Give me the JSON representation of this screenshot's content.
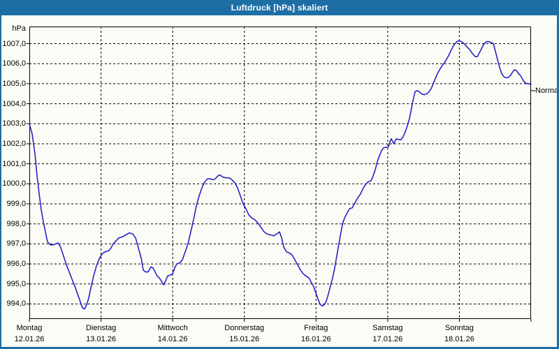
{
  "window": {
    "title": "Luftdruck [hPa] skaliert",
    "title_bar_color": "#1c6ea4",
    "background_color": "#fcfcf6"
  },
  "chart_data": {
    "type": "line",
    "title": "Luftdruck [hPa] skaliert",
    "ylabel": "hPa",
    "line_color": "#2424c8",
    "grid": "dashed",
    "legend_position": "none",
    "ylim": [
      993.25,
      1007.854
    ],
    "xlim": [
      0,
      7
    ],
    "y_ticks": [
      {
        "value": 1007,
        "label": "1007,0"
      },
      {
        "value": 1006,
        "label": "1006,0"
      },
      {
        "value": 1005,
        "label": "1005,0"
      },
      {
        "value": 1004,
        "label": "1004,0"
      },
      {
        "value": 1003,
        "label": "1003,0"
      },
      {
        "value": 1002,
        "label": "1002,0"
      },
      {
        "value": 1001,
        "label": "1001,0"
      },
      {
        "value": 1000,
        "label": "1000,0"
      },
      {
        "value": 999,
        "label": "999,0"
      },
      {
        "value": 998,
        "label": "998,0"
      },
      {
        "value": 997,
        "label": "997,0"
      },
      {
        "value": 996,
        "label": "996,0"
      },
      {
        "value": 995,
        "label": "995,0"
      },
      {
        "value": 994,
        "label": "994,0"
      }
    ],
    "x_ticks": [
      {
        "pos": 0,
        "day": "Montag",
        "date": "12.01.26"
      },
      {
        "pos": 1,
        "day": "Dienstag",
        "date": "13.01.26"
      },
      {
        "pos": 2,
        "day": "Mittwoch",
        "date": "14.01.26"
      },
      {
        "pos": 3,
        "day": "Donnerstag",
        "date": "15.01.26"
      },
      {
        "pos": 4,
        "day": "Freitag",
        "date": "16.01.26"
      },
      {
        "pos": 5,
        "day": "Samstag",
        "date": "17.01.26"
      },
      {
        "pos": 6,
        "day": "Sonntag",
        "date": "18.01.26"
      }
    ],
    "annotation": {
      "label": "Normal",
      "value": 1004.65
    },
    "series": [
      {
        "name": "Luftdruck",
        "points": [
          [
            0,
            1003.0
          ],
          [
            0.039,
            1002.5
          ],
          [
            0.078,
            1001.5
          ],
          [
            0.107,
            1000.4
          ],
          [
            0.137,
            999.5
          ],
          [
            0.166,
            998.7
          ],
          [
            0.195,
            998.1
          ],
          [
            0.224,
            997.6
          ],
          [
            0.253,
            997.1
          ],
          [
            0.293,
            996.95
          ],
          [
            0.331,
            996.95
          ],
          [
            0.37,
            997.0
          ],
          [
            0.4,
            997.05
          ],
          [
            0.429,
            996.9
          ],
          [
            0.468,
            996.5
          ],
          [
            0.517,
            995.95
          ],
          [
            0.566,
            995.5
          ],
          [
            0.604,
            995.15
          ],
          [
            0.634,
            994.9
          ],
          [
            0.663,
            994.6
          ],
          [
            0.702,
            994.2
          ],
          [
            0.741,
            993.8
          ],
          [
            0.77,
            993.75
          ],
          [
            0.799,
            993.95
          ],
          [
            0.829,
            994.3
          ],
          [
            0.858,
            994.8
          ],
          [
            0.897,
            995.4
          ],
          [
            0.936,
            995.9
          ],
          [
            0.975,
            996.25
          ],
          [
            1.014,
            996.5
          ],
          [
            1.053,
            996.6
          ],
          [
            1.102,
            996.65
          ],
          [
            1.131,
            996.75
          ],
          [
            1.17,
            997.0
          ],
          [
            1.209,
            997.15
          ],
          [
            1.248,
            997.3
          ],
          [
            1.297,
            997.35
          ],
          [
            1.345,
            997.45
          ],
          [
            1.394,
            997.55
          ],
          [
            1.443,
            997.5
          ],
          [
            1.482,
            997.3
          ],
          [
            1.521,
            996.8
          ],
          [
            1.56,
            996.3
          ],
          [
            1.589,
            995.7
          ],
          [
            1.618,
            995.6
          ],
          [
            1.657,
            995.6
          ],
          [
            1.696,
            995.85
          ],
          [
            1.726,
            995.8
          ],
          [
            1.755,
            995.6
          ],
          [
            1.784,
            995.4
          ],
          [
            1.813,
            995.3
          ],
          [
            1.843,
            995.15
          ],
          [
            1.872,
            994.95
          ],
          [
            1.901,
            995.15
          ],
          [
            1.93,
            995.4
          ],
          [
            1.969,
            995.45
          ],
          [
            1.999,
            995.5
          ],
          [
            2.028,
            995.8
          ],
          [
            2.057,
            996.0
          ],
          [
            2.096,
            996.05
          ],
          [
            2.135,
            996.2
          ],
          [
            2.174,
            996.6
          ],
          [
            2.213,
            997.0
          ],
          [
            2.252,
            997.6
          ],
          [
            2.291,
            998.2
          ],
          [
            2.33,
            998.9
          ],
          [
            2.369,
            999.4
          ],
          [
            2.408,
            999.8
          ],
          [
            2.447,
            1000.1
          ],
          [
            2.486,
            1000.25
          ],
          [
            2.525,
            1000.25
          ],
          [
            2.564,
            1000.2
          ],
          [
            2.593,
            1000.25
          ],
          [
            2.632,
            1000.4
          ],
          [
            2.662,
            1000.45
          ],
          [
            2.691,
            1000.35
          ],
          [
            2.74,
            1000.3
          ],
          [
            2.788,
            1000.3
          ],
          [
            2.827,
            1000.2
          ],
          [
            2.866,
            1000.05
          ],
          [
            2.905,
            999.8
          ],
          [
            2.944,
            999.4
          ],
          [
            2.983,
            999.0
          ],
          [
            3.022,
            998.75
          ],
          [
            3.061,
            998.45
          ],
          [
            3.1,
            998.3
          ],
          [
            3.149,
            998.2
          ],
          [
            3.198,
            998.0
          ],
          [
            3.237,
            997.8
          ],
          [
            3.276,
            997.6
          ],
          [
            3.315,
            997.5
          ],
          [
            3.364,
            997.45
          ],
          [
            3.412,
            997.4
          ],
          [
            3.451,
            997.5
          ],
          [
            3.49,
            997.6
          ],
          [
            3.52,
            997.3
          ],
          [
            3.549,
            996.85
          ],
          [
            3.588,
            996.6
          ],
          [
            3.627,
            996.55
          ],
          [
            3.666,
            996.45
          ],
          [
            3.705,
            996.2
          ],
          [
            3.744,
            995.95
          ],
          [
            3.783,
            995.7
          ],
          [
            3.822,
            995.5
          ],
          [
            3.861,
            995.4
          ],
          [
            3.9,
            995.3
          ],
          [
            3.939,
            995.05
          ],
          [
            3.968,
            994.85
          ],
          [
            3.997,
            994.55
          ],
          [
            4.027,
            994.25
          ],
          [
            4.056,
            994.0
          ],
          [
            4.085,
            993.9
          ],
          [
            4.114,
            993.95
          ],
          [
            4.143,
            994.15
          ],
          [
            4.173,
            994.5
          ],
          [
            4.202,
            994.9
          ],
          [
            4.231,
            995.3
          ],
          [
            4.26,
            995.8
          ],
          [
            4.29,
            996.4
          ],
          [
            4.319,
            997.0
          ],
          [
            4.348,
            997.6
          ],
          [
            4.377,
            998.1
          ],
          [
            4.406,
            998.35
          ],
          [
            4.436,
            998.55
          ],
          [
            4.465,
            998.75
          ],
          [
            4.504,
            998.8
          ],
          [
            4.543,
            999.05
          ],
          [
            4.582,
            999.3
          ],
          [
            4.621,
            999.5
          ],
          [
            4.66,
            999.8
          ],
          [
            4.699,
            1000.0
          ],
          [
            4.728,
            1000.1
          ],
          [
            4.767,
            1000.15
          ],
          [
            4.797,
            1000.4
          ],
          [
            4.826,
            1000.7
          ],
          [
            4.855,
            1001.1
          ],
          [
            4.884,
            1001.4
          ],
          [
            4.913,
            1001.65
          ],
          [
            4.943,
            1001.8
          ],
          [
            4.982,
            1001.82
          ],
          [
            5.011,
            1001.85
          ],
          [
            5.031,
            1002.1
          ],
          [
            5.05,
            1002.25
          ],
          [
            5.07,
            1002.1
          ],
          [
            5.089,
            1002.0
          ],
          [
            5.109,
            1002.2
          ],
          [
            5.128,
            1002.25
          ],
          [
            5.157,
            1002.2
          ],
          [
            5.187,
            1002.2
          ],
          [
            5.216,
            1002.35
          ],
          [
            5.245,
            1002.6
          ],
          [
            5.274,
            1002.9
          ],
          [
            5.304,
            1003.25
          ],
          [
            5.333,
            1003.8
          ],
          [
            5.362,
            1004.3
          ],
          [
            5.382,
            1004.6
          ],
          [
            5.411,
            1004.65
          ],
          [
            5.44,
            1004.6
          ],
          [
            5.469,
            1004.5
          ],
          [
            5.508,
            1004.45
          ],
          [
            5.547,
            1004.5
          ],
          [
            5.577,
            1004.6
          ],
          [
            5.606,
            1004.75
          ],
          [
            5.635,
            1005.0
          ],
          [
            5.664,
            1005.25
          ],
          [
            5.694,
            1005.5
          ],
          [
            5.733,
            1005.75
          ],
          [
            5.772,
            1005.95
          ],
          [
            5.811,
            1006.15
          ],
          [
            5.85,
            1006.4
          ],
          [
            5.889,
            1006.7
          ],
          [
            5.928,
            1006.95
          ],
          [
            5.967,
            1007.1
          ],
          [
            5.996,
            1007.15
          ],
          [
            6.026,
            1007.1
          ],
          [
            6.065,
            1007.0
          ],
          [
            6.104,
            1006.85
          ],
          [
            6.143,
            1006.7
          ],
          [
            6.182,
            1006.5
          ],
          [
            6.221,
            1006.35
          ],
          [
            6.25,
            1006.35
          ],
          [
            6.28,
            1006.55
          ],
          [
            6.309,
            1006.75
          ],
          [
            6.338,
            1006.95
          ],
          [
            6.377,
            1007.1
          ],
          [
            6.416,
            1007.1
          ],
          [
            6.445,
            1007.05
          ],
          [
            6.475,
            1007.0
          ],
          [
            6.504,
            1006.6
          ],
          [
            6.533,
            1006.2
          ],
          [
            6.562,
            1005.8
          ],
          [
            6.591,
            1005.5
          ],
          [
            6.621,
            1005.35
          ],
          [
            6.65,
            1005.3
          ],
          [
            6.679,
            1005.3
          ],
          [
            6.709,
            1005.4
          ],
          [
            6.738,
            1005.55
          ],
          [
            6.767,
            1005.7
          ],
          [
            6.796,
            1005.65
          ],
          [
            6.825,
            1005.5
          ],
          [
            6.855,
            1005.4
          ],
          [
            6.884,
            1005.2
          ],
          [
            6.913,
            1005.05
          ],
          [
            6.943,
            1005.0
          ],
          [
            6.972,
            1005.0
          ],
          [
            7,
            1004.95
          ]
        ]
      }
    ]
  }
}
